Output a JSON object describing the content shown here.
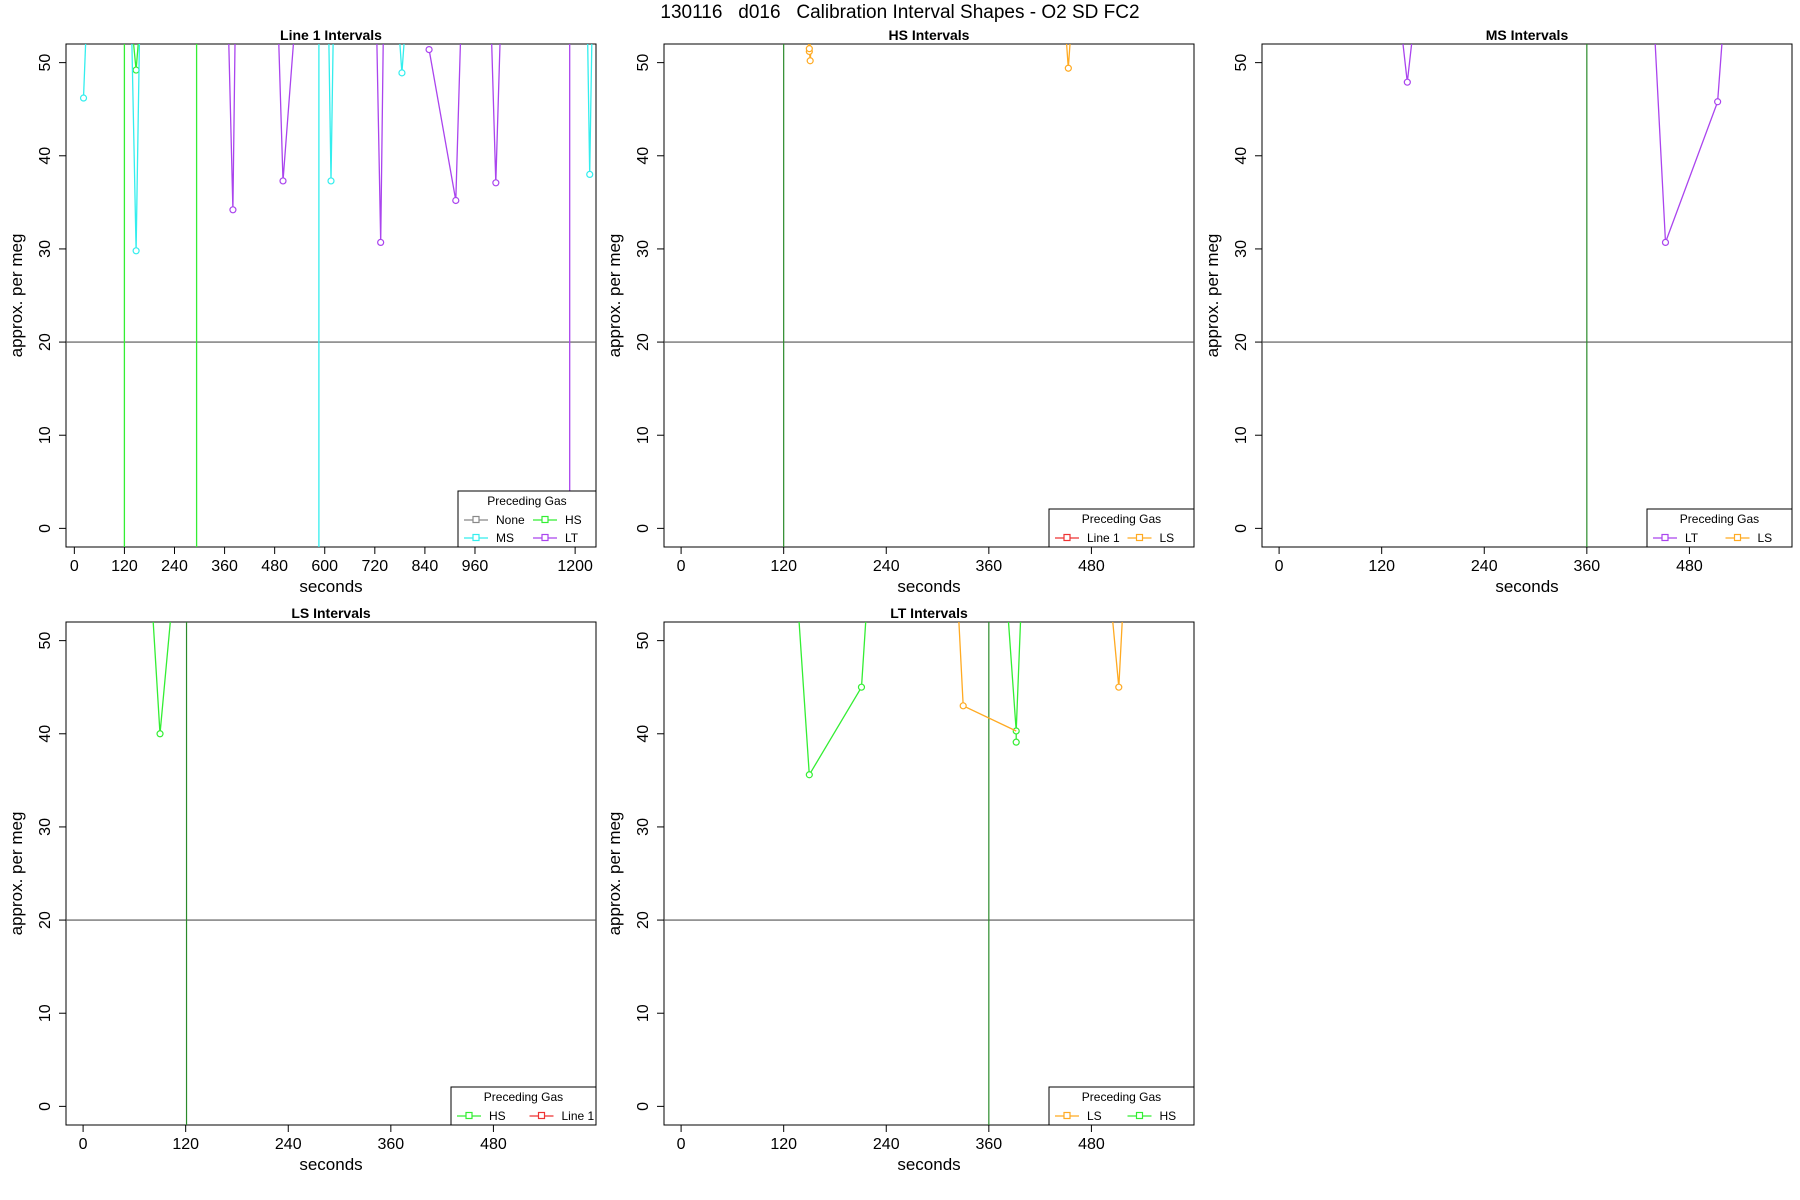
{
  "figure": {
    "title": "130116   d016   Calibration Interval Shapes - O2 SD FC2"
  },
  "colors": {
    "None": "#888888",
    "HS": "#33ee33",
    "MS": "#33eeee",
    "LT": "#aa44ee",
    "LS": "#ffaa22",
    "Line 1": "#ee3333",
    "hline": "#555555"
  },
  "chart_data": [
    {
      "type": "line",
      "title": "Line 1 Intervals",
      "xlabel": "seconds",
      "ylabel": "approx. per meg",
      "xlim": [
        -20,
        1250
      ],
      "ylim": [
        -2,
        52
      ],
      "xticks": [
        0,
        120,
        240,
        360,
        480,
        600,
        720,
        840,
        960,
        1200
      ],
      "yticks": [
        0,
        10,
        20,
        30,
        40,
        50
      ],
      "hline": 20,
      "legend": {
        "title": "Preceding Gas",
        "position": "bottom-right",
        "entries": [
          "None",
          "HS",
          "MS",
          "LT"
        ]
      },
      "series": [
        {
          "name": "HS",
          "lines": [
            [
              [
                120,
                -2
              ],
              [
                120,
                52
              ]
            ],
            [
              [
                293,
                -2
              ],
              [
                293,
                52
              ]
            ],
            [
              [
                142,
                52
              ],
              [
                148,
                49.2
              ],
              [
                153,
                52
              ]
            ]
          ],
          "points": [
            [
              148,
              49.2
            ]
          ]
        },
        {
          "name": "MS",
          "lines": [
            [
              [
                22,
                46.2
              ],
              [
                27,
                52
              ]
            ],
            [
              [
                138,
                52
              ],
              [
                148,
                29.8
              ],
              [
                156,
                52
              ]
            ],
            [
              [
                586,
                -2
              ],
              [
                586,
                52
              ]
            ],
            [
              [
                610,
                52
              ],
              [
                615,
                37.3
              ],
              [
                620,
                52
              ]
            ],
            [
              [
                780,
                52
              ],
              [
                785,
                48.9
              ],
              [
                790,
                52
              ]
            ],
            [
              [
                1230,
                52
              ],
              [
                1235,
                38
              ],
              [
                1240,
                52
              ]
            ]
          ],
          "points": [
            [
              22,
              46.2
            ],
            [
              148,
              29.8
            ],
            [
              615,
              37.3
            ],
            [
              785,
              48.9
            ],
            [
              1235,
              38
            ]
          ]
        },
        {
          "name": "LT",
          "lines": [
            [
              [
                370,
                52
              ],
              [
                380,
                34.2
              ],
              [
                385,
                52
              ]
            ],
            [
              [
                490,
                52
              ],
              [
                500,
                37.3
              ],
              [
                525,
                52
              ]
            ],
            [
              [
                725,
                52
              ],
              [
                734,
                30.7
              ],
              [
                740,
                52
              ]
            ],
            [
              [
                850,
                51.4
              ],
              [
                914,
                35.2
              ],
              [
                925,
                52
              ]
            ],
            [
              [
                1000,
                52
              ],
              [
                1010,
                37.1
              ],
              [
                1020,
                52
              ]
            ],
            [
              [
                1187,
                -2
              ],
              [
                1187,
                52
              ]
            ]
          ],
          "points": [
            [
              380,
              34.2
            ],
            [
              500,
              37.3
            ],
            [
              734,
              30.7
            ],
            [
              850,
              51.4
            ],
            [
              914,
              35.2
            ],
            [
              1010,
              37.1
            ]
          ]
        }
      ]
    },
    {
      "type": "line",
      "title": "HS Intervals",
      "xlabel": "seconds",
      "ylabel": "approx. per meg",
      "xlim": [
        -20,
        600
      ],
      "ylim": [
        -2,
        52
      ],
      "xticks": [
        0,
        120,
        240,
        360,
        480
      ],
      "yticks": [
        0,
        10,
        20,
        30,
        40,
        50
      ],
      "hline": 20,
      "legend": {
        "title": "Preceding Gas",
        "position": "bottom-right",
        "entries": [
          "Line 1",
          "LS"
        ]
      },
      "series": [
        {
          "name": "Line 1",
          "lines": [],
          "points": []
        },
        {
          "name": "LS",
          "lines": [
            [
              [
                149,
                52
              ],
              [
                150,
                51.2
              ],
              [
                151,
                52
              ]
            ],
            [
              [
                150,
                51.5
              ],
              [
                151,
                50.2
              ],
              [
                152,
                51.4
              ]
            ],
            [
              [
                451,
                52
              ],
              [
                453,
                49.4
              ],
              [
                455,
                52
              ]
            ]
          ],
          "points": [
            [
              150,
              51.2
            ],
            [
              150,
              51.5
            ],
            [
              151,
              50.2
            ],
            [
              453,
              49.4
            ]
          ],
          "vline": 120
        }
      ]
    },
    {
      "type": "line",
      "title": "MS Intervals",
      "xlabel": "seconds",
      "ylabel": "approx. per meg",
      "xlim": [
        -20,
        600
      ],
      "ylim": [
        -2,
        52
      ],
      "xticks": [
        0,
        120,
        240,
        360,
        480
      ],
      "yticks": [
        0,
        10,
        20,
        30,
        40,
        50
      ],
      "hline": 20,
      "legend": {
        "title": "Preceding Gas",
        "position": "bottom-right",
        "entries": [
          "LT",
          "LS"
        ]
      },
      "series": [
        {
          "name": "LT",
          "lines": [
            [
              [
                145,
                52
              ],
              [
                150,
                47.9
              ],
              [
                155,
                52
              ]
            ],
            [
              [
                440,
                52
              ],
              [
                452,
                30.7
              ],
              [
                513,
                45.8
              ],
              [
                518,
                52
              ]
            ]
          ],
          "points": [
            [
              150,
              47.9
            ],
            [
              452,
              30.7
            ],
            [
              513,
              45.8
            ]
          ],
          "vline": 360
        },
        {
          "name": "LS",
          "lines": [],
          "points": []
        }
      ]
    },
    {
      "type": "line",
      "title": "LS Intervals",
      "xlabel": "seconds",
      "ylabel": "approx. per meg",
      "xlim": [
        -20,
        600
      ],
      "ylim": [
        -2,
        52
      ],
      "xticks": [
        0,
        120,
        240,
        360,
        480
      ],
      "yticks": [
        0,
        10,
        20,
        30,
        40,
        50
      ],
      "hline": 20,
      "legend": {
        "title": "Preceding Gas",
        "position": "bottom-right",
        "entries": [
          "HS",
          "Line 1"
        ]
      },
      "series": [
        {
          "name": "HS",
          "lines": [
            [
              [
                82,
                52
              ],
              [
                90,
                40
              ],
              [
                102,
                52
              ]
            ]
          ],
          "points": [
            [
              90,
              40
            ]
          ],
          "vline": 121
        },
        {
          "name": "Line 1",
          "lines": [],
          "points": []
        }
      ]
    },
    {
      "type": "line",
      "title": "LT Intervals",
      "xlabel": "seconds",
      "ylabel": "approx. per meg",
      "xlim": [
        -20,
        600
      ],
      "ylim": [
        -2,
        52
      ],
      "xticks": [
        0,
        120,
        240,
        360,
        480
      ],
      "yticks": [
        0,
        10,
        20,
        30,
        40,
        50
      ],
      "hline": 20,
      "legend": {
        "title": "Preceding Gas",
        "position": "bottom-right",
        "entries": [
          "LS",
          "HS"
        ]
      },
      "series": [
        {
          "name": "HS",
          "lines": [
            [
              [
                138,
                52
              ],
              [
                150,
                35.6
              ],
              [
                211,
                45
              ],
              [
                216,
                52
              ]
            ],
            [
              [
                383,
                52
              ],
              [
                392,
                40.3
              ],
              [
                397,
                52
              ]
            ],
            [
              [
                392,
                40.3
              ],
              [
                392,
                39.1
              ]
            ]
          ],
          "points": [
            [
              150,
              35.6
            ],
            [
              211,
              45
            ],
            [
              392,
              40.3
            ],
            [
              392,
              39.1
            ]
          ],
          "vline": 360
        },
        {
          "name": "LS",
          "lines": [
            [
              [
                325,
                52
              ],
              [
                330,
                43
              ],
              [
                392,
                40.3
              ]
            ],
            [
              [
                505,
                52
              ],
              [
                512,
                45
              ],
              [
                516,
                52
              ]
            ]
          ],
          "points": [
            [
              330,
              43
            ],
            [
              512,
              45
            ]
          ]
        }
      ]
    }
  ]
}
